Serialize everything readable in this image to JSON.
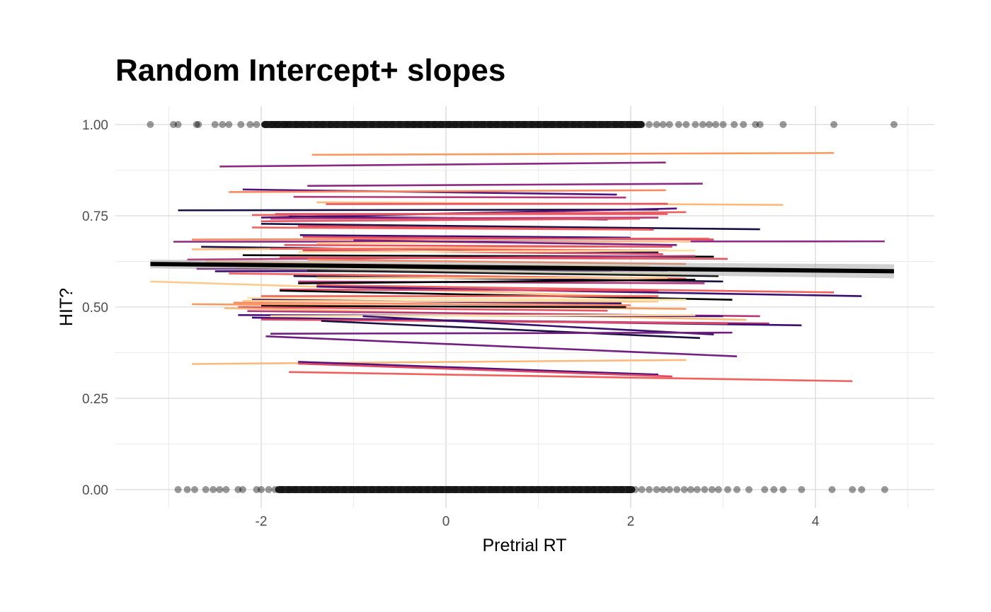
{
  "chart_data": {
    "type": "scatter",
    "title": "Random Intercept+ slopes",
    "xlabel": "Pretrial RT",
    "ylabel": "HIT?",
    "xlim": [
      -3.5,
      5.3
    ],
    "ylim": [
      -0.05,
      1.05
    ],
    "x_ticks": [
      "-2",
      "0",
      "2",
      "4"
    ],
    "x_tick_values": [
      -2,
      0,
      2,
      4
    ],
    "y_ticks": [
      "0.00",
      "0.25",
      "0.50",
      "0.75",
      "1.00"
    ],
    "y_tick_values": [
      0,
      0.25,
      0.5,
      0.75,
      1
    ],
    "grid": true,
    "legend": "none",
    "point_color": "#000000",
    "point_opacity": 0.4,
    "fixed_effect": {
      "x": [
        -3.2,
        4.85
      ],
      "y": [
        0.618,
        0.598
      ],
      "ci_half_width": 0.012,
      "color": "#000000"
    },
    "points_hit_1": [
      -3.2,
      -2.95,
      -2.9,
      -2.7,
      -2.68,
      -2.5,
      -2.42,
      -2.35,
      -2.22,
      -2.12,
      -2.05,
      -1.95,
      -1.88,
      -1.82,
      -1.75,
      -1.7,
      -1.62,
      -1.55,
      -1.48,
      -1.4,
      -1.33,
      -1.25,
      -1.18,
      -1.1,
      -1.02,
      -0.95,
      -0.88,
      -0.8,
      -0.72,
      -0.65,
      -0.58,
      -0.5,
      -0.42,
      -0.35,
      -0.28,
      -0.2,
      -0.12,
      -0.05,
      0.03,
      0.1,
      0.18,
      0.25,
      0.33,
      0.4,
      0.48,
      0.55,
      0.63,
      0.7,
      0.78,
      0.85,
      0.93,
      1.0,
      1.08,
      1.15,
      1.23,
      1.3,
      1.38,
      1.45,
      1.53,
      1.6,
      1.68,
      1.75,
      1.83,
      1.9,
      1.98,
      2.05,
      2.12,
      2.2,
      2.28,
      2.35,
      2.42,
      2.52,
      2.6,
      2.7,
      2.78,
      2.85,
      2.92,
      3.0,
      3.12,
      3.22,
      3.35,
      3.4,
      3.65,
      4.2,
      4.85
    ],
    "points_hit_0": [
      -2.9,
      -2.8,
      -2.72,
      -2.6,
      -2.52,
      -2.45,
      -2.38,
      -2.25,
      -2.2,
      -2.05,
      -2.0,
      -1.92,
      -1.85,
      -1.78,
      -1.7,
      -1.63,
      -1.55,
      -1.48,
      -1.4,
      -1.32,
      -1.25,
      -1.18,
      -1.1,
      -1.02,
      -0.95,
      -0.88,
      -0.8,
      -0.72,
      -0.65,
      -0.58,
      -0.5,
      -0.42,
      -0.35,
      -0.28,
      -0.2,
      -0.12,
      -0.05,
      0.03,
      0.1,
      0.18,
      0.25,
      0.33,
      0.4,
      0.48,
      0.55,
      0.63,
      0.7,
      0.78,
      0.85,
      0.93,
      1.0,
      1.08,
      1.15,
      1.23,
      1.3,
      1.38,
      1.45,
      1.53,
      1.6,
      1.68,
      1.75,
      1.83,
      1.9,
      1.98,
      2.05,
      2.12,
      2.2,
      2.28,
      2.35,
      2.42,
      2.5,
      2.58,
      2.65,
      2.72,
      2.8,
      2.88,
      2.95,
      3.05,
      3.15,
      3.28,
      3.45,
      3.55,
      3.65,
      3.85,
      4.18,
      4.4,
      4.5,
      4.75
    ],
    "subject_lines": [
      {
        "x1": -1.45,
        "y1": 0.917,
        "x2": 4.2,
        "y2": 0.922,
        "color": "#f89a5f"
      },
      {
        "x1": -2.45,
        "y1": 0.885,
        "x2": 2.38,
        "y2": 0.896,
        "color": "#8c2a81"
      },
      {
        "x1": -1.5,
        "y1": 0.832,
        "x2": 2.78,
        "y2": 0.838,
        "color": "#8c2a81"
      },
      {
        "x1": -2.2,
        "y1": 0.822,
        "x2": 1.85,
        "y2": 0.808,
        "color": "#50127b"
      },
      {
        "x1": -2.35,
        "y1": 0.815,
        "x2": 2.38,
        "y2": 0.82,
        "color": "#fb8861"
      },
      {
        "x1": -1.65,
        "y1": 0.802,
        "x2": 1.95,
        "y2": 0.8,
        "color": "#b73779"
      },
      {
        "x1": -1.4,
        "y1": 0.787,
        "x2": 3.65,
        "y2": 0.78,
        "color": "#fcb97c"
      },
      {
        "x1": -1.3,
        "y1": 0.782,
        "x2": 2.4,
        "y2": 0.783,
        "color": "#e65464"
      },
      {
        "x1": -2.9,
        "y1": 0.765,
        "x2": 2.3,
        "y2": 0.767,
        "color": "#1a1042"
      },
      {
        "x1": -2.0,
        "y1": 0.745,
        "x2": 2.5,
        "y2": 0.77,
        "color": "#50127b"
      },
      {
        "x1": -2.1,
        "y1": 0.752,
        "x2": 2.6,
        "y2": 0.76,
        "color": "#f1605d"
      },
      {
        "x1": -1.85,
        "y1": 0.755,
        "x2": 2.4,
        "y2": 0.755,
        "color": "#e65464"
      },
      {
        "x1": -1.7,
        "y1": 0.748,
        "x2": 1.75,
        "y2": 0.74,
        "color": "#3b0f70"
      },
      {
        "x1": -1.9,
        "y1": 0.742,
        "x2": 2.3,
        "y2": 0.745,
        "color": "#b73779"
      },
      {
        "x1": -2.0,
        "y1": 0.735,
        "x2": 2.1,
        "y2": 0.742,
        "color": "#e65464"
      },
      {
        "x1": -2.0,
        "y1": 0.728,
        "x2": 3.4,
        "y2": 0.713,
        "color": "#1a1042"
      },
      {
        "x1": -1.6,
        "y1": 0.722,
        "x2": 2.25,
        "y2": 0.712,
        "color": "#de4968"
      },
      {
        "x1": -2.1,
        "y1": 0.718,
        "x2": 2.2,
        "y2": 0.712,
        "color": "#f1605d"
      },
      {
        "x1": -1.58,
        "y1": 0.697,
        "x2": 2.0,
        "y2": 0.69,
        "color": "#3b0f70"
      },
      {
        "x1": -2.75,
        "y1": 0.685,
        "x2": 2.85,
        "y2": 0.688,
        "color": "#fb8861"
      },
      {
        "x1": -2.95,
        "y1": 0.679,
        "x2": 4.75,
        "y2": 0.68,
        "color": "#8c2a81"
      },
      {
        "x1": -1.55,
        "y1": 0.692,
        "x2": 2.9,
        "y2": 0.685,
        "color": "#de4968"
      },
      {
        "x1": -1.4,
        "y1": 0.675,
        "x2": 2.65,
        "y2": 0.68,
        "color": "#feca8d"
      },
      {
        "x1": -1.0,
        "y1": 0.683,
        "x2": 2.5,
        "y2": 0.67,
        "color": "#721f81"
      },
      {
        "x1": -2.65,
        "y1": 0.665,
        "x2": 2.3,
        "y2": 0.65,
        "color": "#1a1042"
      },
      {
        "x1": -2.75,
        "y1": 0.658,
        "x2": 1.75,
        "y2": 0.665,
        "color": "#fcb97c"
      },
      {
        "x1": -1.75,
        "y1": 0.67,
        "x2": 2.45,
        "y2": 0.665,
        "color": "#e65464"
      },
      {
        "x1": -1.9,
        "y1": 0.66,
        "x2": 2.4,
        "y2": 0.655,
        "color": "#f1605d"
      },
      {
        "x1": -1.55,
        "y1": 0.655,
        "x2": 2.35,
        "y2": 0.645,
        "color": "#de4968"
      },
      {
        "x1": -1.6,
        "y1": 0.65,
        "x2": 2.7,
        "y2": 0.655,
        "color": "#fde2a3"
      },
      {
        "x1": -2.2,
        "y1": 0.642,
        "x2": 2.9,
        "y2": 0.638,
        "color": "#000004"
      },
      {
        "x1": -2.8,
        "y1": 0.63,
        "x2": 2.7,
        "y2": 0.64,
        "color": "#b73779"
      },
      {
        "x1": -1.8,
        "y1": 0.636,
        "x2": 3.05,
        "y2": 0.632,
        "color": "#e65464"
      },
      {
        "x1": -2.6,
        "y1": 0.625,
        "x2": 2.15,
        "y2": 0.605,
        "color": "#feca8d"
      },
      {
        "x1": -1.5,
        "y1": 0.63,
        "x2": 2.6,
        "y2": 0.618,
        "color": "#fb8861"
      },
      {
        "x1": -2.7,
        "y1": 0.605,
        "x2": 2.4,
        "y2": 0.6,
        "color": "#721f81"
      },
      {
        "x1": -2.5,
        "y1": 0.598,
        "x2": 1.8,
        "y2": 0.6,
        "color": "#3b0f70"
      },
      {
        "x1": -1.35,
        "y1": 0.615,
        "x2": 2.2,
        "y2": 0.612,
        "color": "#fde2a3"
      },
      {
        "x1": -2.25,
        "y1": 0.61,
        "x2": 2.55,
        "y2": 0.59,
        "color": "#fcfdbf"
      },
      {
        "x1": -1.5,
        "y1": 0.6,
        "x2": 2.95,
        "y2": 0.585,
        "color": "#000004"
      },
      {
        "x1": -2.35,
        "y1": 0.592,
        "x2": 2.6,
        "y2": 0.578,
        "color": "#f1605d"
      },
      {
        "x1": -1.65,
        "y1": 0.585,
        "x2": 3.0,
        "y2": 0.57,
        "color": "#1a1042"
      },
      {
        "x1": -1.4,
        "y1": 0.58,
        "x2": 2.4,
        "y2": 0.58,
        "color": "#feca8d"
      },
      {
        "x1": -1.6,
        "y1": 0.57,
        "x2": 2.8,
        "y2": 0.565,
        "color": "#b73779"
      },
      {
        "x1": -1.6,
        "y1": 0.565,
        "x2": 2.7,
        "y2": 0.575,
        "color": "#000004"
      },
      {
        "x1": -3.2,
        "y1": 0.57,
        "x2": 2.1,
        "y2": 0.528,
        "color": "#feca8d"
      },
      {
        "x1": -1.4,
        "y1": 0.56,
        "x2": 4.2,
        "y2": 0.54,
        "color": "#f1605d"
      },
      {
        "x1": -1.4,
        "y1": 0.556,
        "x2": 4.5,
        "y2": 0.53,
        "color": "#3b0f70"
      },
      {
        "x1": -1.8,
        "y1": 0.548,
        "x2": 2.3,
        "y2": 0.545,
        "color": "#de4968"
      },
      {
        "x1": -1.8,
        "y1": 0.545,
        "x2": 3.1,
        "y2": 0.52,
        "color": "#000004"
      },
      {
        "x1": -2.0,
        "y1": 0.53,
        "x2": 2.3,
        "y2": 0.53,
        "color": "#f1605d"
      },
      {
        "x1": -2.15,
        "y1": 0.525,
        "x2": 2.6,
        "y2": 0.52,
        "color": "#fde2a3"
      },
      {
        "x1": -2.1,
        "y1": 0.52,
        "x2": 1.9,
        "y2": 0.51,
        "color": "#3b0f70"
      },
      {
        "x1": -2.2,
        "y1": 0.517,
        "x2": 2.3,
        "y2": 0.515,
        "color": "#feca8d"
      },
      {
        "x1": -2.3,
        "y1": 0.512,
        "x2": 2.0,
        "y2": 0.505,
        "color": "#fb8861"
      },
      {
        "x1": -2.75,
        "y1": 0.508,
        "x2": 2.6,
        "y2": 0.495,
        "color": "#f89a5f"
      },
      {
        "x1": -2.0,
        "y1": 0.503,
        "x2": 1.95,
        "y2": 0.5,
        "color": "#000004"
      },
      {
        "x1": -2.25,
        "y1": 0.5,
        "x2": 1.75,
        "y2": 0.49,
        "color": "#e65464"
      },
      {
        "x1": -2.4,
        "y1": 0.497,
        "x2": 3.25,
        "y2": 0.465,
        "color": "#fcb97c"
      },
      {
        "x1": -2.15,
        "y1": 0.489,
        "x2": 3.4,
        "y2": 0.475,
        "color": "#b73779"
      },
      {
        "x1": -2.25,
        "y1": 0.478,
        "x2": 3.0,
        "y2": 0.475,
        "color": "#50127b"
      },
      {
        "x1": -2.0,
        "y1": 0.468,
        "x2": 3.5,
        "y2": 0.455,
        "color": "#b73779"
      },
      {
        "x1": -2.1,
        "y1": 0.471,
        "x2": 3.85,
        "y2": 0.45,
        "color": "#3b0f70"
      },
      {
        "x1": -2.0,
        "y1": 0.466,
        "x2": 3.05,
        "y2": 0.455,
        "color": "#de4968"
      },
      {
        "x1": -1.9,
        "y1": 0.475,
        "x2": 2.7,
        "y2": 0.478,
        "color": "#fde2a3"
      },
      {
        "x1": -1.35,
        "y1": 0.462,
        "x2": 2.75,
        "y2": 0.415,
        "color": "#1a1042"
      },
      {
        "x1": -0.9,
        "y1": 0.475,
        "x2": 2.9,
        "y2": 0.425,
        "color": "#3b0f70"
      },
      {
        "x1": -1.9,
        "y1": 0.427,
        "x2": 3.1,
        "y2": 0.43,
        "color": "#721f81"
      },
      {
        "x1": -1.95,
        "y1": 0.42,
        "x2": 3.15,
        "y2": 0.365,
        "color": "#721f81"
      },
      {
        "x1": -2.75,
        "y1": 0.344,
        "x2": 2.6,
        "y2": 0.355,
        "color": "#fcb97c"
      },
      {
        "x1": -1.6,
        "y1": 0.35,
        "x2": 2.3,
        "y2": 0.315,
        "color": "#50127b"
      },
      {
        "x1": -1.6,
        "y1": 0.345,
        "x2": 2.45,
        "y2": 0.31,
        "color": "#de4968"
      },
      {
        "x1": -1.7,
        "y1": 0.322,
        "x2": 4.4,
        "y2": 0.297,
        "color": "#f1605d"
      }
    ]
  }
}
